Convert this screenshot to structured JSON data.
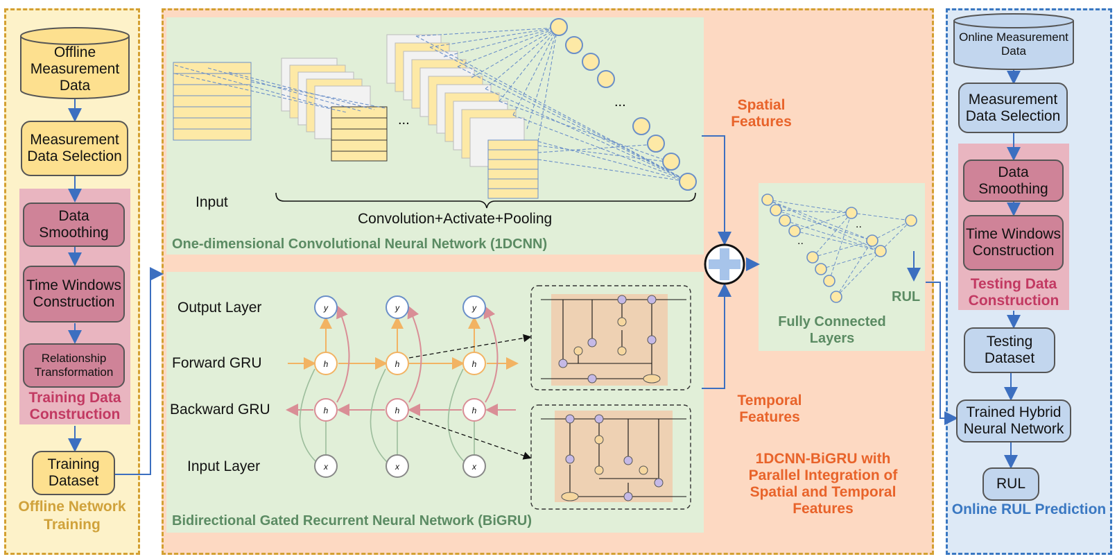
{
  "offline": {
    "db": "Offline Measurement Data",
    "selection": "Measurement Data Selection",
    "smoothing": "Data Smoothing",
    "windows": "Time Windows Construction",
    "relationship": "Relationship Transformation",
    "construction_label": "Training Data Construction",
    "dataset": "Training Dataset",
    "panel_label": "Offline Network Training"
  },
  "cnn": {
    "input_label": "Input",
    "conv_label": "Convolution+Activate+Pooling",
    "title": "One-dimensional Convolutional Neural Network (1DCNN)",
    "dots1": "...",
    "dots2": "..."
  },
  "bigru": {
    "output_layer": "Output Layer",
    "forward": "Forward GRU",
    "backward": "Backward GRU",
    "input_layer": "Input Layer",
    "title": "Bidirectional Gated Recurrent Neural Network (BiGRU)"
  },
  "features": {
    "spatial": "Spatial Features",
    "temporal": "Temporal Features",
    "fc": "Fully Connected Layers",
    "rul": "RUL",
    "hybrid": "1DCNN-BiGRU with Parallel Integration of Spatial and Temporal Features"
  },
  "online": {
    "db": "Online Measurement Data",
    "selection": "Measurement Data Selection",
    "smoothing": "Data Smoothing",
    "windows": "Time Windows Construction",
    "construction_label": "Testing Data Construction",
    "dataset": "Testing Dataset",
    "trained": "Trained Hybrid Neural Network",
    "rul": "RUL",
    "panel_label": "Online RUL Prediction"
  },
  "colors": {
    "offline_bg": "#fdf2c9",
    "center_bg": "#fdd9c2",
    "green_bg": "#e1efd8",
    "online_bg": "#dde9f6",
    "orange_text": "#e8632a",
    "connector": "#3c6fc0"
  }
}
